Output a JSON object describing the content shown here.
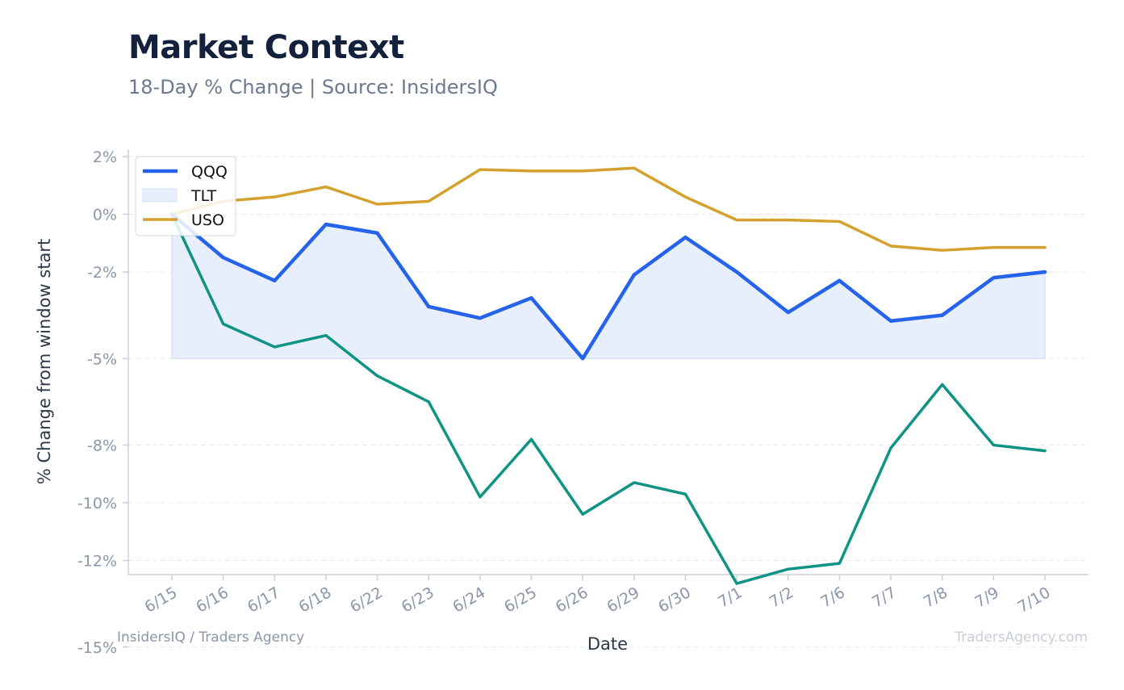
{
  "header": {
    "title": "Market Context",
    "subtitle": "18-Day % Change | Source: InsidersIQ"
  },
  "footer": {
    "left": "InsidersIQ / Traders Agency",
    "right": "TradersAgency.com"
  },
  "chart_data": {
    "type": "line",
    "xlabel": "Date",
    "ylabel": "% Change from window start",
    "ylim": [
      -15.5,
      2.5
    ],
    "yticks": [
      2,
      0,
      -2,
      -5,
      -8,
      -10,
      -12,
      -15
    ],
    "ytick_labels": [
      "2%",
      "0%",
      "-2%",
      "-5%",
      "-8%",
      "-10%",
      "-12%",
      "-15%"
    ],
    "grid": true,
    "legend_position": "top-left",
    "categories": [
      "6/15",
      "6/16",
      "6/17",
      "6/18",
      "6/22",
      "6/23",
      "6/24",
      "6/25",
      "6/26",
      "6/29",
      "6/30",
      "7/1",
      "7/2",
      "7/6",
      "7/7",
      "7/8",
      "7/9",
      "7/10"
    ],
    "series": [
      {
        "name": "QQQ",
        "color": "#2563eb",
        "style": "line",
        "values": [
          0.0,
          -1.5,
          -2.3,
          -0.35,
          -0.65,
          -3.2,
          -3.6,
          -2.9,
          -5.0,
          -2.1,
          -0.8,
          -2.0,
          -3.4,
          -2.3,
          -3.7,
          -3.5,
          -2.2,
          -2.0
        ]
      },
      {
        "name": "TLT",
        "color": "#0e9384",
        "style": "line+band",
        "values": [
          0.0,
          -3.8,
          -4.6,
          -4.2,
          -5.6,
          -6.5,
          -9.8,
          -7.8,
          -10.4,
          -9.3,
          -9.7,
          -12.8,
          -12.3,
          -12.1,
          -8.1,
          -5.9,
          -8.0,
          -8.2
        ]
      },
      {
        "name": "USO",
        "color": "#d4a02e",
        "style": "line",
        "values": [
          0.0,
          0.45,
          0.6,
          0.95,
          0.35,
          0.45,
          1.55,
          1.5,
          1.5,
          1.6,
          0.6,
          -0.2,
          -0.2,
          -0.25,
          -1.1,
          -1.25,
          -1.15,
          -1.15
        ]
      }
    ],
    "band": {
      "series": "TLT",
      "color": "#e8effc",
      "edge": "#d6e2f8",
      "floor": -5
    }
  }
}
